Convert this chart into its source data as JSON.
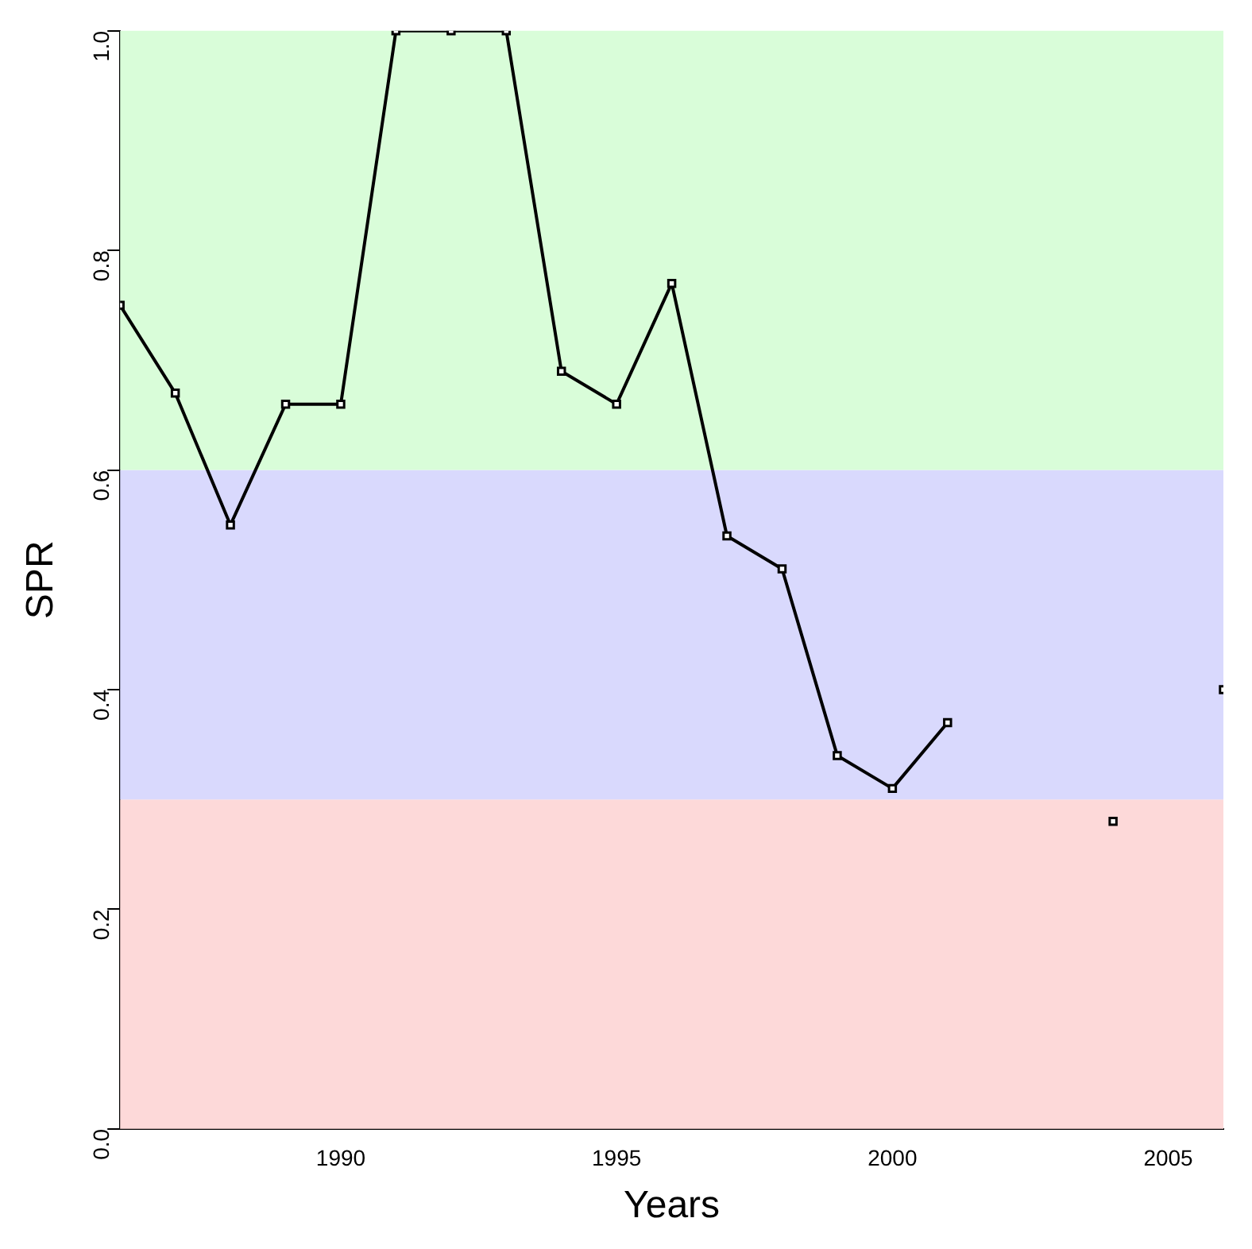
{
  "chart_data": {
    "type": "line",
    "xlabel": "Years",
    "ylabel": "SPR",
    "x": [
      1986,
      1987,
      1988,
      1989,
      1990,
      1991,
      1992,
      1993,
      1994,
      1995,
      1996,
      1997,
      1998,
      1999,
      2000,
      2001,
      2002,
      2003,
      2004,
      2005,
      2006
    ],
    "series": [
      {
        "color": "#000000",
        "values": [
          0.75,
          0.67,
          0.55,
          0.66,
          0.66,
          1.0,
          1.0,
          1.0,
          0.69,
          0.66,
          0.77,
          0.54,
          0.51,
          0.34,
          0.31,
          0.37,
          null,
          null,
          0.28,
          null,
          0.4
        ]
      }
    ],
    "xlim": [
      1986,
      2006
    ],
    "xticks": [
      1990,
      1995,
      2000,
      2005
    ],
    "ylim": [
      0,
      1
    ],
    "yticks": [
      {
        "value": 0,
        "label": "0.0"
      },
      {
        "value": 0.2,
        "label": "0.2"
      },
      {
        "value": 0.4,
        "label": "0.4"
      },
      {
        "value": 0.6,
        "label": "0.6"
      },
      {
        "value": 0.8,
        "label": "0.8"
      },
      {
        "value": 1,
        "label": "1.0"
      }
    ],
    "bands": [
      {
        "axis": "y",
        "from": 0,
        "to": 0.3,
        "color": "#fdd9d9"
      },
      {
        "axis": "y",
        "from": 0.3,
        "to": 0.6,
        "color": "#d9d9fd"
      },
      {
        "axis": "y",
        "from": 0.6,
        "to": 1,
        "color": "#d9fdd9"
      }
    ],
    "grid": false,
    "legend": false,
    "marker": "square",
    "line_style": "solid"
  }
}
